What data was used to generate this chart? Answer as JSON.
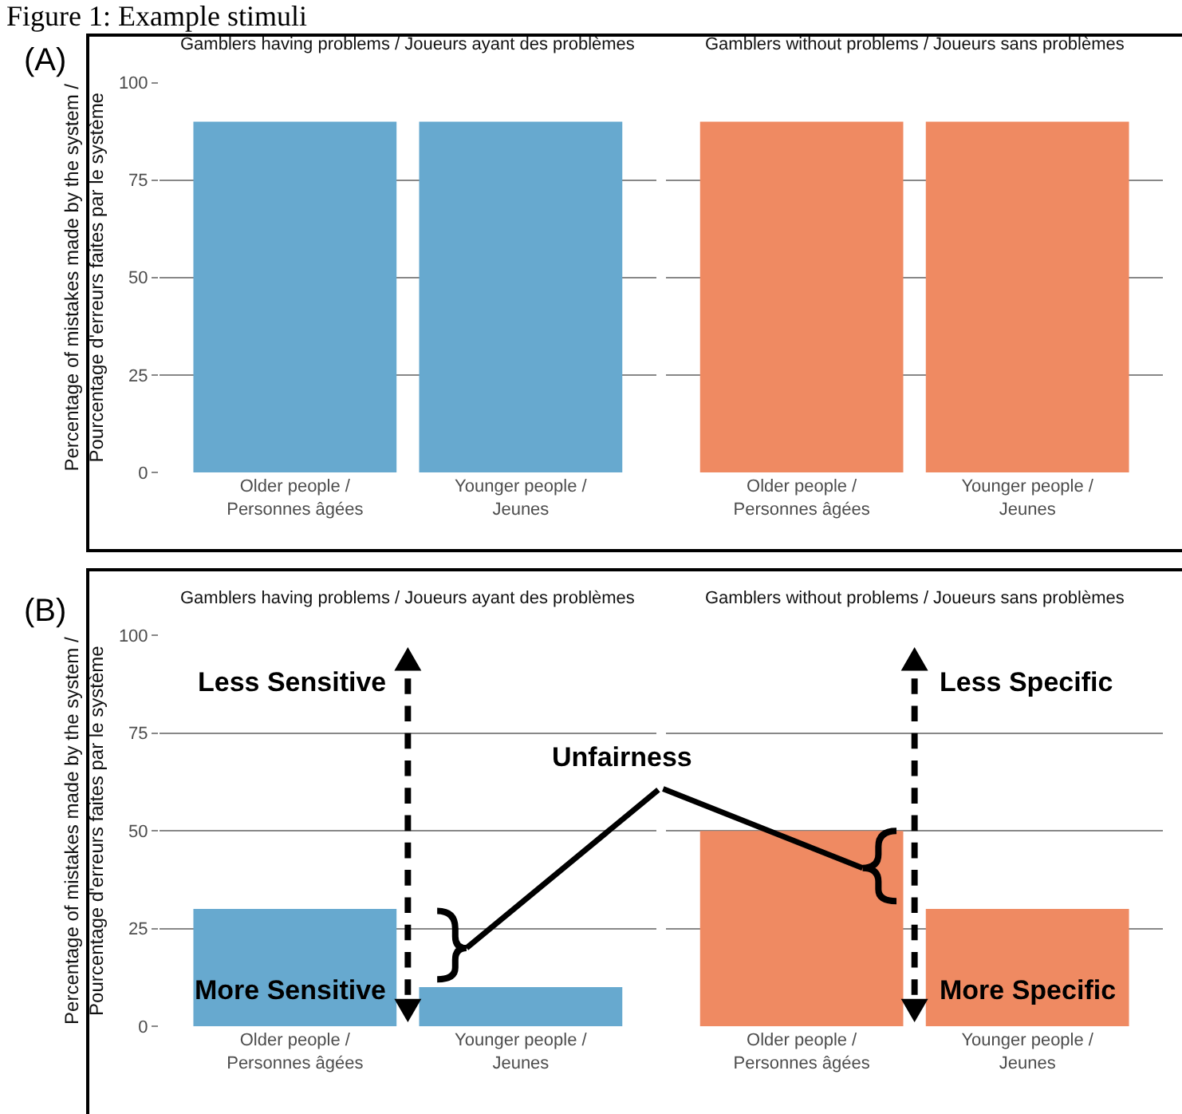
{
  "chart_data": [
    {
      "type": "bar",
      "title": "Gamblers having problems / Joueurs ayant des problèmes",
      "ylabel": "Percentage of mistakes made by the system /\nPourcentage d'erreurs faites par le système",
      "categories": [
        "Older people /\nPersonnes âgées",
        "Younger people /\nJeunes"
      ],
      "values": [
        90,
        90
      ],
      "color": "#67a9cf",
      "ylim": [
        0,
        100
      ],
      "yticks": [
        0,
        25,
        50,
        75,
        100
      ],
      "grid": "y",
      "legend": false,
      "annotations": [
        "Figure 1: Example stimuli",
        "(A)"
      ]
    },
    {
      "type": "bar",
      "title": "Gamblers without problems / Joueurs sans problèmes",
      "categories": [
        "Older people /\nPersonnes âgées",
        "Younger people /\nJeunes"
      ],
      "values": [
        90,
        90
      ],
      "color": "#ef8a62",
      "ylim": [
        0,
        100
      ],
      "yticks": [
        0,
        25,
        50,
        75,
        100
      ],
      "grid": "y",
      "legend": false,
      "tick_labels": "x"
    },
    {
      "type": "bar",
      "title": "Gamblers having problems / Joueurs ayant des problèmes",
      "ylabel": "Percentage of mistakes made by the system /\nPourcentage d'erreurs faites par le système",
      "categories": [
        "Older people /\nPersonnes âgées",
        "Younger people /\nJeunes"
      ],
      "values": [
        30,
        10
      ],
      "color": "#67a9cf",
      "ylim": [
        0,
        100
      ],
      "yticks": [
        0,
        25,
        50,
        75,
        100
      ],
      "grid": "y",
      "legend": false,
      "annotations": [
        "(B)",
        "Less Sensitive",
        "More Sensitive",
        "Unfairness"
      ]
    },
    {
      "type": "bar",
      "title": "Gamblers without problems / Joueurs sans problèmes",
      "categories": [
        "Older people /\nPersonnes âgées",
        "Younger people /\nJeunes"
      ],
      "values": [
        50,
        30
      ],
      "color": "#ef8a62",
      "ylim": [
        0,
        100
      ],
      "yticks": [
        0,
        25,
        50,
        75,
        100
      ],
      "grid": "y",
      "legend": false,
      "tick_labels": "x",
      "annotations": [
        "Less Specific",
        "More Specific"
      ]
    }
  ]
}
